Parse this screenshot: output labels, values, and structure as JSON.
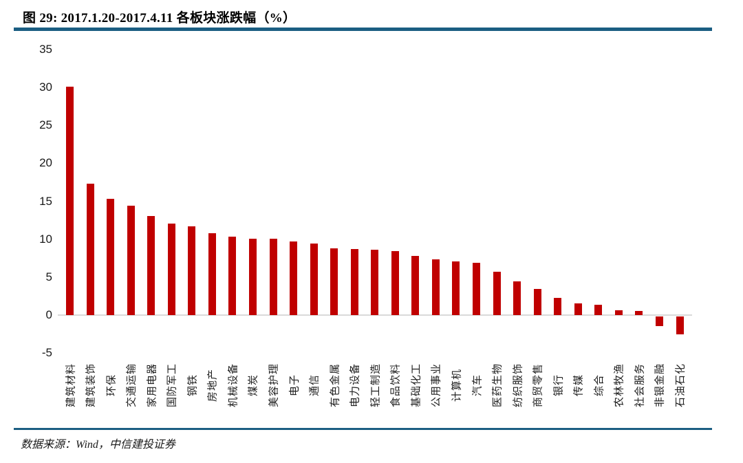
{
  "figure": {
    "title": "图 29: 2017.1.20-2017.4.11 各板块涨跌幅（%）",
    "source": "数据来源：Wind，中信建投证券"
  },
  "colors": {
    "bar": "#c00000",
    "rule": "#1b5e82",
    "axis_line": "#d9d9d9"
  },
  "chart_data": {
    "type": "bar",
    "title": "2017.1.20-2017.4.11 各板块涨跌幅（%）",
    "xlabel": "",
    "ylabel": "",
    "ylim": [
      -5,
      35
    ],
    "yticks": [
      35,
      30,
      25,
      20,
      15,
      10,
      5,
      0,
      -5
    ],
    "grid": false,
    "legend": false,
    "bar_color": "#c00000",
    "categories": [
      "建筑材料",
      "建筑装饰",
      "环保",
      "交通运输",
      "家用电器",
      "国防军工",
      "钢铁",
      "房地产",
      "机械设备",
      "煤炭",
      "美容护理",
      "电子",
      "通信",
      "有色金属",
      "电力设备",
      "轻工制造",
      "食品饮料",
      "基础化工",
      "公用事业",
      "计算机",
      "汽车",
      "医药生物",
      "纺织服饰",
      "商贸零售",
      "银行",
      "传媒",
      "综合",
      "农林牧渔",
      "社会服务",
      "非银金融",
      "石油石化"
    ],
    "values": [
      30.1,
      17.3,
      15.3,
      14.4,
      13.1,
      12.1,
      11.7,
      10.8,
      10.3,
      10.1,
      10.1,
      9.7,
      9.4,
      8.8,
      8.7,
      8.6,
      8.4,
      7.8,
      7.3,
      7.1,
      6.9,
      5.7,
      4.4,
      3.4,
      2.3,
      1.5,
      1.4,
      0.6,
      0.5,
      -1.3,
      -2.4
    ]
  }
}
